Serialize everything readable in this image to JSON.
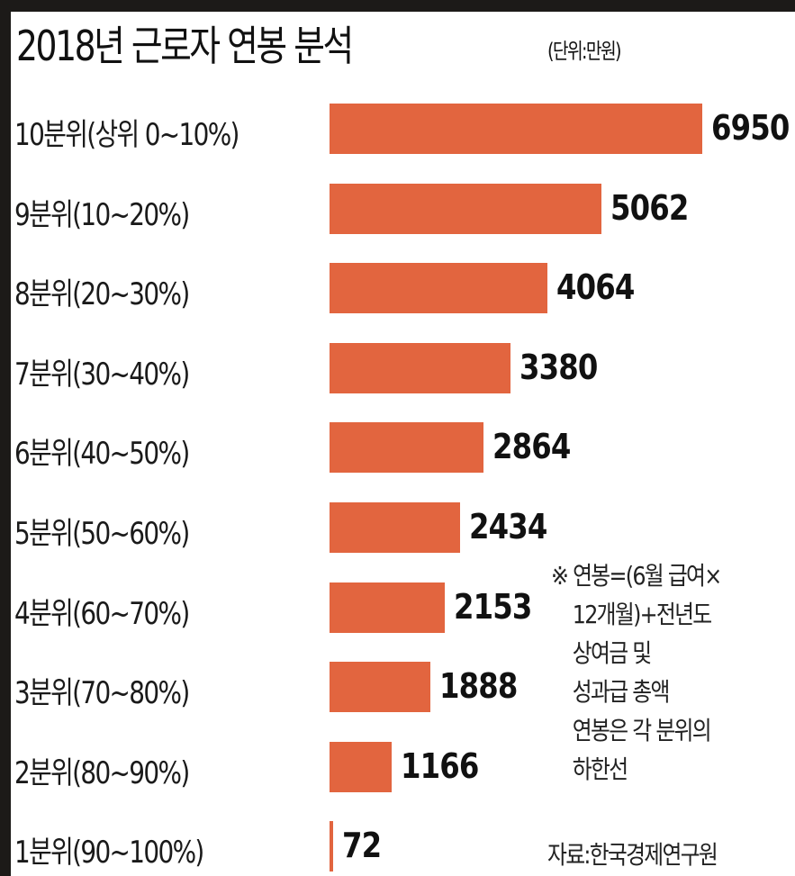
{
  "title": {
    "main": "2018년 근로자 연봉 분석",
    "unit": "(단위:만원)"
  },
  "colors": {
    "bar": "#e2653f",
    "frame": "#1c1a18"
  },
  "rows": [
    {
      "label": "10분위(상위 0~10%)",
      "value": "6950"
    },
    {
      "label": "9분위(10~20%)",
      "value": "5062"
    },
    {
      "label": "8분위(20~30%)",
      "value": "4064"
    },
    {
      "label": "7분위(30~40%)",
      "value": "3380"
    },
    {
      "label": "6분위(40~50%)",
      "value": "2864"
    },
    {
      "label": "5분위(50~60%)",
      "value": "2434"
    },
    {
      "label": "4분위(60~70%)",
      "value": "2153"
    },
    {
      "label": "3분위(70~80%)",
      "value": "1888"
    },
    {
      "label": "2분위(80~90%)",
      "value": "1166"
    },
    {
      "label": "1분위(90~100%)",
      "value": "72"
    }
  ],
  "note": {
    "lines": [
      "※ 연봉=(6월 급여×",
      "12개월)+전년도",
      "상여금 및",
      "성과급 총액",
      "연봉은 각 분위의",
      "하한선"
    ]
  },
  "source": "자료:한국경제연구원",
  "chart_data": {
    "type": "bar",
    "orientation": "horizontal",
    "title": "2018년 근로자 연봉 분석",
    "subtitle": "(단위:만원)",
    "categories": [
      "10분위(상위 0~10%)",
      "9분위(10~20%)",
      "8분위(20~30%)",
      "7분위(30~40%)",
      "6분위(40~50%)",
      "5분위(50~60%)",
      "4분위(60~70%)",
      "3분위(70~80%)",
      "2분위(80~90%)",
      "1분위(90~100%)"
    ],
    "values": [
      6950,
      5062,
      4064,
      3380,
      2864,
      2434,
      2153,
      1888,
      1166,
      72
    ],
    "xlabel": "",
    "ylabel": "",
    "unit": "만원",
    "grid": false,
    "data_labels": true,
    "annotations": [
      "※ 연봉=(6월 급여×12개월)+전년도 상여금 및 성과급 총액 연봉은 각 분위의 하한선",
      "자료:한국경제연구원"
    ]
  }
}
